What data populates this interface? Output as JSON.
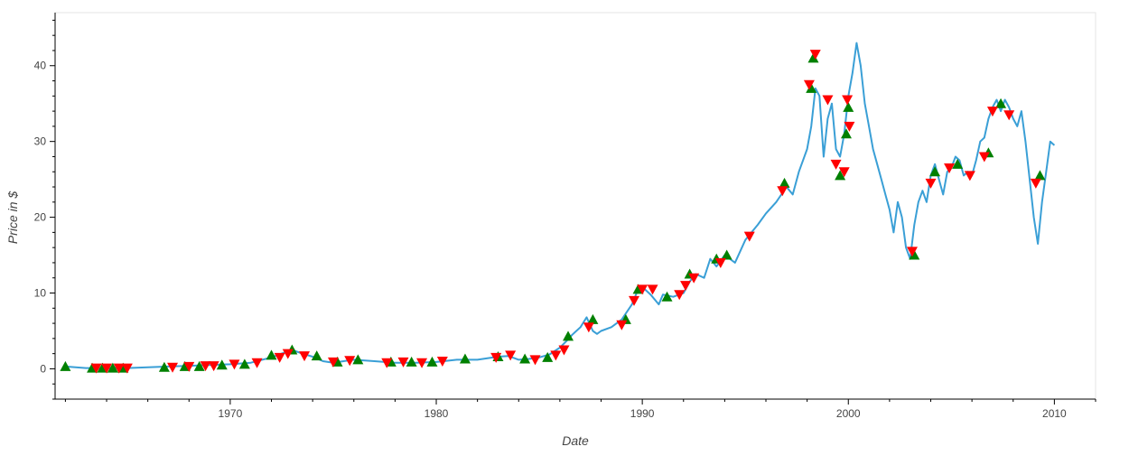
{
  "chart_data": {
    "type": "line",
    "xlabel": "Date",
    "ylabel": "Price in $",
    "xlim": [
      1961.5,
      2012
    ],
    "ylim": [
      -4,
      47
    ],
    "x_ticks": [
      1970,
      1980,
      1990,
      2000,
      2010
    ],
    "x_tick_labels": [
      "1970",
      "1980",
      "1990",
      "2000",
      "2010"
    ],
    "y_ticks": [
      0,
      10,
      20,
      30,
      40
    ],
    "y_tick_labels": [
      "0",
      "10",
      "20",
      "30",
      "40"
    ],
    "grid": false,
    "colors": {
      "price_line": "#3a9fd6",
      "buy_marker": "#008000",
      "sell_marker": "#ff0000"
    },
    "series": [
      {
        "kind": "price",
        "x": [
          1962.0,
          1963.0,
          1964.0,
          1965.0,
          1966.0,
          1967.0,
          1968.0,
          1969.0,
          1970.0,
          1971.0,
          1972.0,
          1972.5,
          1973.0,
          1973.5,
          1974.0,
          1974.5,
          1975.0,
          1975.5,
          1976.0,
          1977.0,
          1978.0,
          1979.0,
          1980.0,
          1981.0,
          1982.0,
          1983.0,
          1983.5,
          1984.0,
          1984.5,
          1985.0,
          1985.5,
          1986.0,
          1986.3,
          1986.6,
          1987.0,
          1987.3,
          1987.6,
          1987.8,
          1988.0,
          1988.5,
          1989.0,
          1989.5,
          1989.8,
          1990.0,
          1990.4,
          1990.8,
          1991.0,
          1991.5,
          1992.0,
          1992.3,
          1992.6,
          1993.0,
          1993.3,
          1993.6,
          1994.0,
          1994.5,
          1995.0,
          1995.3,
          1995.6,
          1996.0,
          1996.5,
          1997.0,
          1997.3,
          1997.6,
          1998.0,
          1998.2,
          1998.4,
          1998.6,
          1998.8,
          1999.0,
          1999.2,
          1999.4,
          1999.6,
          1999.8,
          2000.0,
          2000.2,
          2000.4,
          2000.6,
          2000.8,
          2001.0,
          2001.2,
          2001.4,
          2001.6,
          2001.8,
          2002.0,
          2002.2,
          2002.4,
          2002.6,
          2002.8,
          2003.0,
          2003.2,
          2003.4,
          2003.6,
          2003.8,
          2004.0,
          2004.2,
          2004.4,
          2004.6,
          2004.8,
          2005.0,
          2005.2,
          2005.4,
          2005.6,
          2005.8,
          2006.0,
          2006.2,
          2006.4,
          2006.6,
          2006.8,
          2007.0,
          2007.2,
          2007.4,
          2007.6,
          2007.8,
          2008.0,
          2008.2,
          2008.4,
          2008.6,
          2008.8,
          2009.0,
          2009.2,
          2009.4,
          2009.6,
          2009.8,
          2010.0
        ],
        "y": [
          0.3,
          0.1,
          0.1,
          0.1,
          0.2,
          0.3,
          0.4,
          0.5,
          0.6,
          0.8,
          1.5,
          2.0,
          2.5,
          2.0,
          1.6,
          1.0,
          0.8,
          1.0,
          1.2,
          1.0,
          0.8,
          0.8,
          0.9,
          1.2,
          1.2,
          1.6,
          1.7,
          1.2,
          1.3,
          1.5,
          1.9,
          2.8,
          3.6,
          4.5,
          5.5,
          6.8,
          5.0,
          4.6,
          5.0,
          5.5,
          6.5,
          8.5,
          10.5,
          10.8,
          9.8,
          8.5,
          9.8,
          9.5,
          10.0,
          11.5,
          12.5,
          12.0,
          14.5,
          13.5,
          15.0,
          14.0,
          17.0,
          18.0,
          19.0,
          20.5,
          22.0,
          24.0,
          23.0,
          26.0,
          29.0,
          32.0,
          37.0,
          36.0,
          28.0,
          33.0,
          35.0,
          29.0,
          28.0,
          31.0,
          36.0,
          39.0,
          43.0,
          40.0,
          35.0,
          32.0,
          29.0,
          27.0,
          25.0,
          23.0,
          21.0,
          18.0,
          22.0,
          20.0,
          16.0,
          14.5,
          19.0,
          22.0,
          23.5,
          22.0,
          25.5,
          27.0,
          25.0,
          23.0,
          26.0,
          26.5,
          28.0,
          27.5,
          25.5,
          26.0,
          25.5,
          27.5,
          30.0,
          30.5,
          33.0,
          34.5,
          35.5,
          34.0,
          35.5,
          34.5,
          33.0,
          32.0,
          34.0,
          30.0,
          25.0,
          20.0,
          16.5,
          22.0,
          26.0,
          30.0,
          29.5
        ]
      },
      {
        "kind": "buy",
        "x": [
          1962.0,
          1963.3,
          1963.8,
          1964.3,
          1964.8,
          1966.8,
          1967.8,
          1968.5,
          1969.6,
          1970.7,
          1972.0,
          1973.0,
          1974.2,
          1975.2,
          1976.2,
          1977.8,
          1978.8,
          1979.8,
          1981.4,
          1983.0,
          1984.3,
          1985.4,
          1986.4,
          1987.6,
          1989.2,
          1989.8,
          1991.2,
          1992.3,
          1993.6,
          1994.1,
          1996.9,
          1998.2,
          1998.3,
          1999.6,
          1999.9,
          2000.0,
          2003.2,
          2004.2,
          2005.3,
          2006.8,
          2007.4,
          2009.3
        ],
        "y": [
          0.3,
          0.1,
          0.1,
          0.1,
          0.1,
          0.2,
          0.3,
          0.3,
          0.5,
          0.6,
          1.8,
          2.5,
          1.7,
          0.9,
          1.2,
          0.9,
          0.9,
          0.9,
          1.3,
          1.6,
          1.3,
          1.5,
          4.3,
          6.5,
          6.5,
          10.5,
          9.5,
          12.5,
          14.5,
          15.0,
          24.5,
          37.0,
          41.0,
          25.5,
          31.0,
          34.5,
          15.0,
          26.0,
          27.0,
          28.5,
          35.0,
          25.5
        ]
      },
      {
        "kind": "sell",
        "x": [
          1963.5,
          1964.0,
          1964.6,
          1965.0,
          1967.2,
          1968.0,
          1968.8,
          1969.2,
          1970.2,
          1971.3,
          1972.4,
          1972.8,
          1973.6,
          1975.0,
          1975.8,
          1977.6,
          1978.4,
          1979.3,
          1980.3,
          1982.9,
          1983.6,
          1984.8,
          1985.8,
          1986.2,
          1987.4,
          1989.0,
          1989.6,
          1990.0,
          1990.5,
          1991.8,
          1992.1,
          1992.5,
          1993.8,
          1995.2,
          1996.8,
          1998.1,
          1998.4,
          1999.0,
          1999.4,
          1999.8,
          1999.95,
          2000.05,
          2003.1,
          2004.0,
          2004.9,
          2005.9,
          2006.6,
          2007.0,
          2007.8,
          2009.1
        ],
        "y": [
          0.1,
          0.1,
          0.1,
          0.1,
          0.2,
          0.3,
          0.4,
          0.4,
          0.6,
          0.8,
          1.5,
          2.0,
          1.7,
          0.9,
          1.1,
          0.8,
          0.9,
          0.8,
          1.0,
          1.5,
          1.8,
          1.2,
          1.8,
          2.5,
          5.5,
          5.8,
          9.0,
          10.5,
          10.5,
          9.8,
          11.0,
          12.0,
          14.0,
          17.5,
          23.5,
          37.5,
          41.5,
          35.5,
          27.0,
          26.0,
          35.5,
          32.0,
          15.5,
          24.5,
          26.5,
          25.5,
          28.0,
          34.0,
          33.5,
          24.5
        ]
      }
    ]
  }
}
